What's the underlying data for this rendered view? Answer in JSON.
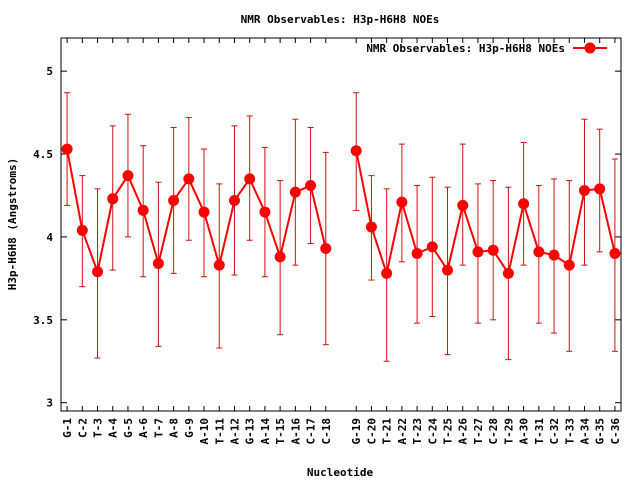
{
  "chart_data": {
    "type": "line",
    "title": "NMR Observables: H3p-H6H8 NOEs",
    "xlabel": "Nucleotide",
    "ylabel": "H3p-H6H8 (Angstroms)",
    "ylim": [
      2.95,
      5.2
    ],
    "yticks": [
      3,
      3.5,
      4,
      4.5,
      5
    ],
    "ytick_labels": [
      "3",
      "3.5",
      "4",
      "4.5",
      "5"
    ],
    "legend": {
      "position": "top-right",
      "label": "NMR Observables: H3p-H6H8 NOEs"
    },
    "series_color": "#ff0000",
    "errorbar_color": "#d01010",
    "categories": [
      "G-1",
      "C-2",
      "T-3",
      "A-4",
      "G-5",
      "A-6",
      "T-7",
      "A-8",
      "G-9",
      "A-10",
      "T-11",
      "A-12",
      "G-13",
      "A-14",
      "T-15",
      "A-16",
      "C-17",
      "C-18",
      "G-19",
      "C-20",
      "T-21",
      "A-22",
      "T-23",
      "C-24",
      "T-25",
      "A-26",
      "T-27",
      "C-28",
      "T-29",
      "A-30",
      "T-31",
      "C-32",
      "T-33",
      "A-34",
      "G-35",
      "C-36"
    ],
    "x": [
      1,
      2,
      3,
      4,
      5,
      6,
      7,
      8,
      9,
      10,
      11,
      12,
      13,
      14,
      15,
      16,
      17,
      18,
      20,
      21,
      22,
      23,
      24,
      25,
      26,
      27,
      28,
      29,
      30,
      31,
      32,
      33,
      34,
      35,
      36,
      37
    ],
    "segments": [
      [
        0,
        17
      ],
      [
        18,
        35
      ]
    ],
    "values": [
      4.53,
      4.04,
      3.79,
      4.23,
      4.37,
      4.16,
      3.84,
      4.22,
      4.35,
      4.15,
      3.83,
      4.22,
      4.35,
      4.15,
      3.88,
      4.27,
      4.31,
      3.93,
      4.52,
      4.06,
      3.78,
      4.21,
      3.9,
      3.94,
      3.8,
      4.19,
      3.91,
      3.92,
      3.78,
      4.2,
      3.91,
      3.89,
      3.83,
      4.28,
      4.29,
      3.9
    ],
    "err_low": [
      4.19,
      3.7,
      3.27,
      3.8,
      4.0,
      3.76,
      3.34,
      3.78,
      3.98,
      3.76,
      3.33,
      3.77,
      3.98,
      3.76,
      3.41,
      3.83,
      3.96,
      3.35,
      4.16,
      3.74,
      3.25,
      3.85,
      3.48,
      3.52,
      3.29,
      3.83,
      3.48,
      3.5,
      3.26,
      3.83,
      3.48,
      3.42,
      3.31,
      3.83,
      3.91,
      3.31
    ],
    "err_high": [
      4.87,
      4.37,
      4.29,
      4.67,
      4.74,
      4.55,
      4.33,
      4.66,
      4.72,
      4.53,
      4.32,
      4.67,
      4.73,
      4.54,
      4.34,
      4.71,
      4.66,
      4.51,
      4.87,
      4.37,
      4.29,
      4.56,
      4.31,
      4.36,
      4.3,
      4.56,
      4.32,
      4.34,
      4.3,
      4.57,
      4.31,
      4.35,
      4.34,
      4.71,
      4.65,
      4.47
    ]
  }
}
